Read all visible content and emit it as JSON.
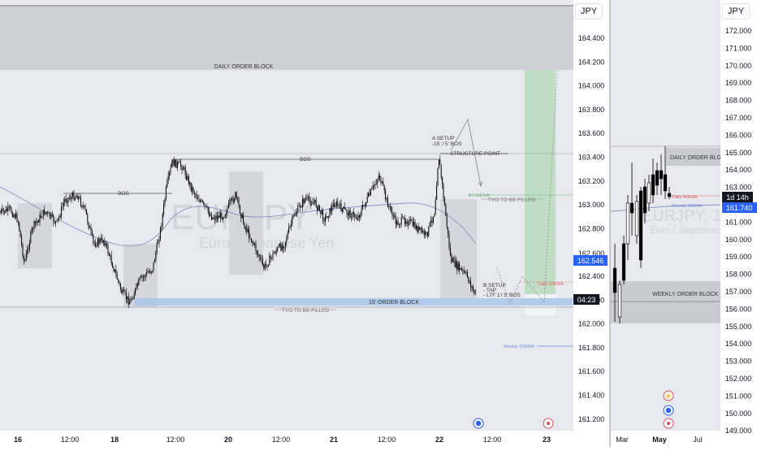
{
  "currency_label": "JPY",
  "colors": {
    "background": "#e8e9ee",
    "axis_background": "#ffffff",
    "candle": "#000000",
    "zone_fill": "#c9cbd1",
    "order_block_fill": "#bfc1c7",
    "target_zone": "#b9dcbf",
    "bos_line": "#555555",
    "ema_line": "#8a90c7",
    "daily_ema": "#e06060",
    "weekly_ema": "#6f8fd6",
    "blue_zone": "#a9c4ea",
    "price_tag": "#2962ff",
    "time_tag": "#131722"
  },
  "left_chart": {
    "y_ticks": [
      "164.400",
      "164.200",
      "164.000",
      "163.800",
      "163.600",
      "163.400",
      "163.200",
      "163.000",
      "162.800",
      "162.600",
      "162.400",
      "162.200",
      "162.000",
      "161.800",
      "161.600",
      "161.400",
      "161.200"
    ],
    "x_labels": [
      "16",
      "12:00",
      "18",
      "12:00",
      "20",
      "12:00",
      "21",
      "12:00",
      "22",
      "12:00",
      "23"
    ],
    "annotations": {
      "daily_ob": "DAILY ORDER BLOCK",
      "bos_1": "BOS",
      "bos_2": "BOS",
      "structure_point": "STRUCTURE POINT",
      "a_setup_1": "A SETUP",
      "a_setup_2": "-15' / 5' BOS",
      "tyo_1": "TYO TO BE FILLED",
      "tyo_2": "TYO TO BE FILLED",
      "ob_15": "15' ORDER BLOCK",
      "b_setup_1": "B SETUP",
      "b_setup_2": "- TAP",
      "b_setup_3": "- LTF 1'/ 5' BOS",
      "ema_4h": "4H 50EMA",
      "ema_daily": "Daily 50EMA",
      "ema_weekly": "Weekly 50EMA"
    },
    "watermark_1": "EURJPY",
    "watermark_2": "Euro / Japanese Yen",
    "price_tag": "162.546",
    "price_tag_above": "162.600",
    "time_tag": "04:23"
  },
  "right_chart": {
    "y_ticks": [
      "172.000",
      "171.000",
      "170.000",
      "169.000",
      "168.000",
      "167.000",
      "166.000",
      "165.000",
      "164.000",
      "163.000",
      "162.000",
      "161.000",
      "160.000",
      "159.000",
      "158.000",
      "157.000",
      "156.000",
      "155.000",
      "154.000",
      "153.000",
      "152.000",
      "151.000",
      "150.000",
      "149.000"
    ],
    "x_labels": [
      "Mar",
      "May",
      "Jul"
    ],
    "annotations": {
      "daily_ob": "DAILY ORDER BLOCK",
      "weekly_ob": "WEEKLY ORDER BLOCK",
      "ema_daily": "Daily 50EMA",
      "ema_weekly": "Weekly 50EMA"
    },
    "watermark_1": "EURJPY, 1W",
    "watermark_2": "Euro / Japanese Yen",
    "timer_tag": "1d 14h",
    "price_tag": "161.740"
  }
}
